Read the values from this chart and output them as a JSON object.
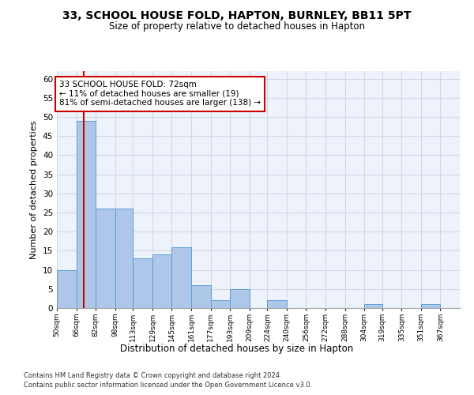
{
  "title1": "33, SCHOOL HOUSE FOLD, HAPTON, BURNLEY, BB11 5PT",
  "title2": "Size of property relative to detached houses in Hapton",
  "xlabel": "Distribution of detached houses by size in Hapton",
  "ylabel": "Number of detached properties",
  "footnote1": "Contains HM Land Registry data © Crown copyright and database right 2024.",
  "footnote2": "Contains public sector information licensed under the Open Government Licence v3.0.",
  "bin_labels": [
    "50sqm",
    "66sqm",
    "82sqm",
    "98sqm",
    "113sqm",
    "129sqm",
    "145sqm",
    "161sqm",
    "177sqm",
    "193sqm",
    "209sqm",
    "224sqm",
    "240sqm",
    "256sqm",
    "272sqm",
    "288sqm",
    "304sqm",
    "319sqm",
    "335sqm",
    "351sqm",
    "367sqm"
  ],
  "bin_edges": [
    50,
    66,
    82,
    98,
    113,
    129,
    145,
    161,
    177,
    193,
    209,
    224,
    240,
    256,
    272,
    288,
    304,
    319,
    335,
    351,
    367
  ],
  "bar_heights": [
    10,
    49,
    26,
    26,
    13,
    14,
    16,
    6,
    2,
    5,
    0,
    2,
    0,
    0,
    0,
    0,
    1,
    0,
    0,
    1,
    0
  ],
  "bar_color": "#aec6e8",
  "bar_edge_color": "#5a9fd4",
  "grid_color": "#d0d8e8",
  "vline_x": 72,
  "vline_color": "#cc0000",
  "annotation_line1": "33 SCHOOL HOUSE FOLD: 72sqm",
  "annotation_line2": "← 11% of detached houses are smaller (19)",
  "annotation_line3": "81% of semi-detached houses are larger (138) →",
  "annotation_box_color": "#ffffff",
  "annotation_box_edge": "#cc0000",
  "ylim": [
    0,
    62
  ],
  "yticks": [
    0,
    5,
    10,
    15,
    20,
    25,
    30,
    35,
    40,
    45,
    50,
    55,
    60
  ],
  "background_color": "#eef2fb"
}
